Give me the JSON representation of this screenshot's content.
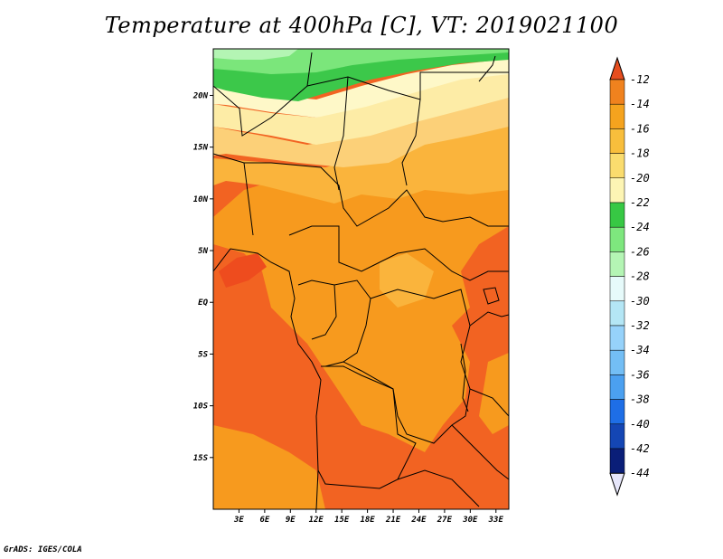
{
  "title": "Temperature at 400hPa [C], VT: 2019021100",
  "credit": "GrADS: IGES/COLA",
  "map": {
    "region": "Central Africa",
    "variable": "Temperature",
    "level": "400hPa",
    "units": "C",
    "valid_time": "2019021100",
    "lon_range": [
      0,
      34.5
    ],
    "lat_range": [
      -20,
      24.5
    ],
    "lon_ticks": [
      {
        "value": 3,
        "label": "3E"
      },
      {
        "value": 6,
        "label": "6E"
      },
      {
        "value": 9,
        "label": "9E"
      },
      {
        "value": 12,
        "label": "12E"
      },
      {
        "value": 15,
        "label": "15E"
      },
      {
        "value": 18,
        "label": "18E"
      },
      {
        "value": 21,
        "label": "21E"
      },
      {
        "value": 24,
        "label": "24E"
      },
      {
        "value": 27,
        "label": "27E"
      },
      {
        "value": 30,
        "label": "30E"
      },
      {
        "value": 33,
        "label": "33E"
      }
    ],
    "lat_ticks": [
      {
        "value": 20,
        "label": "20N"
      },
      {
        "value": 15,
        "label": "15N"
      },
      {
        "value": 10,
        "label": "10N"
      },
      {
        "value": 5,
        "label": "5N"
      },
      {
        "value": 0,
        "label": "EQ"
      },
      {
        "value": -5,
        "label": "5S"
      },
      {
        "value": -10,
        "label": "10S"
      },
      {
        "value": -15,
        "label": "15S"
      }
    ]
  },
  "colorbar": {
    "labels": [
      "-12",
      "-14",
      "-16",
      "-18",
      "-20",
      "-22",
      "-24",
      "-26",
      "-28",
      "-30",
      "-32",
      "-34",
      "-36",
      "-38",
      "-40",
      "-42",
      "-44"
    ],
    "colors": [
      "#e64d1e",
      "#f0821e",
      "#f5a31e",
      "#f8be3c",
      "#fadc6e",
      "#fdf5b4",
      "#37c844",
      "#7ee77e",
      "#b4f5b4",
      "#e6fafa",
      "#b4e6f5",
      "#96d2fa",
      "#73bef5",
      "#4ba0f0",
      "#1e6ee6",
      "#1446b4",
      "#0a1e78"
    ],
    "top_triangle_color": "#e64d1e",
    "bottom_triangle_color": "#e6e6fa"
  },
  "palette": {
    "m12": "#f26322",
    "m12_dark": "#ee4c1e",
    "m14": "#f79a1e",
    "m16": "#fab43c",
    "m18": "#fcd078",
    "m20": "#fdeca6",
    "m22": "#fef8c8",
    "m24": "#3cc84a",
    "m26": "#7be67b",
    "m28": "#b4f5b4"
  }
}
